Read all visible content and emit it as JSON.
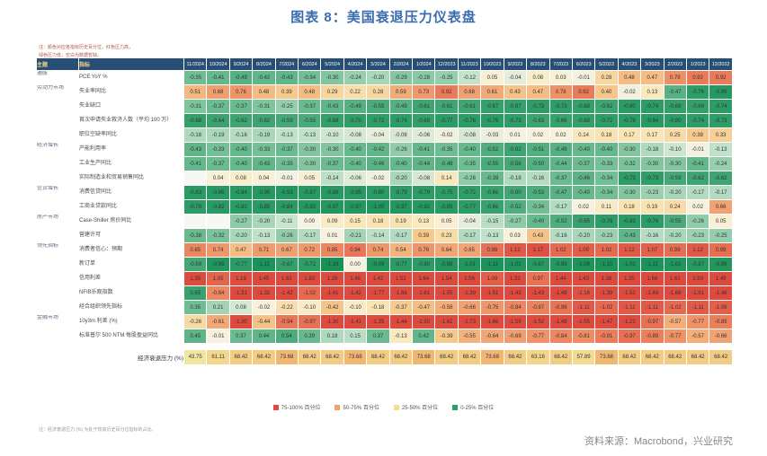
{
  "figure": {
    "title": "图表 8：美国衰退压力仪表盘",
    "source": "资料来源：Macrobond，兴业研究"
  },
  "notes": {
    "top_line1": "注：颜色对应各指标历史百分位，红色压力高，",
    "top_line2": "绿色压力低；空白为数据暂缺。",
    "bottom": "注：经济衰退压力 (%) 为处于较高历史百分位指标的占比。"
  },
  "chart_data": {
    "type": "heatmap",
    "title": "美国衰退压力仪表盘",
    "legend_position": "bottom-center",
    "corner_headers": {
      "theme": "主题",
      "indicator": "指标"
    },
    "columns": [
      "11/2024",
      "10/2024",
      "9/2024",
      "8/2024",
      "7/2024",
      "6/2024",
      "5/2024",
      "4/2024",
      "3/2024",
      "2/2024",
      "1/2024",
      "12/2023",
      "11/2023",
      "10/2023",
      "9/2023",
      "8/2023",
      "7/2023",
      "6/2023",
      "5/2023",
      "4/2023",
      "3/2023",
      "2/2023",
      "1/2023",
      "12/2022"
    ],
    "groups": [
      {
        "theme": "通胀",
        "rows": [
          {
            "label": "PCE YoY %",
            "direction": 1,
            "values": [
              -0.35,
              -0.41,
              -0.49,
              -0.42,
              -0.43,
              -0.34,
              -0.3,
              -0.24,
              -0.2,
              -0.29,
              -0.28,
              -0.25,
              -0.12,
              0.05,
              -0.04,
              0.08,
              0.03,
              -0.01,
              0.28,
              0.48,
              0.47,
              0.79,
              0.92,
              0.92
            ]
          }
        ]
      },
      {
        "theme": "劳动力市场",
        "rows": [
          {
            "label": "失业率同比",
            "direction": 1,
            "values": [
              0.51,
              0.68,
              0.76,
              0.48,
              0.39,
              0.48,
              0.29,
              0.22,
              0.28,
              0.59,
              0.73,
              0.92,
              0.68,
              0.61,
              0.43,
              0.47,
              0.78,
              0.92,
              0.4,
              -0.02,
              0.13,
              -0.47,
              -0.76,
              -0.89
            ]
          },
          {
            "label": "失业缺口",
            "direction": 1,
            "values": [
              -0.31,
              -0.37,
              -0.37,
              -0.31,
              -0.25,
              -0.37,
              -0.43,
              -0.49,
              -0.55,
              -0.49,
              -0.61,
              -0.61,
              -0.61,
              -0.67,
              -0.67,
              -0.73,
              -0.73,
              -0.68,
              -0.62,
              -0.8,
              -0.74,
              -0.68,
              -0.68,
              -0.74
            ]
          },
          {
            "label": "首次申请失业救济人数（平均 100 万）",
            "direction": 1,
            "values": [
              -0.68,
              -0.64,
              -0.62,
              -0.62,
              -0.59,
              -0.55,
              -0.68,
              -0.7,
              -0.72,
              -0.74,
              -0.68,
              -0.77,
              -0.76,
              -0.79,
              -0.73,
              -0.63,
              -0.66,
              -0.68,
              -0.72,
              -0.78,
              -0.84,
              -0.8,
              -0.74,
              -0.73
            ]
          },
          {
            "label": "职位空缺率同比",
            "direction": 1,
            "values": [
              -0.18,
              -0.19,
              -0.16,
              -0.19,
              -0.13,
              -0.13,
              -0.1,
              -0.08,
              -0.04,
              -0.08,
              -0.06,
              -0.02,
              -0.08,
              -0.03,
              0.01,
              0.02,
              0.02,
              0.14,
              0.18,
              0.17,
              0.17,
              0.25,
              0.38,
              0.33
            ]
          }
        ]
      },
      {
        "theme": "经济增长",
        "rows": [
          {
            "label": "产能利用率",
            "direction": 1,
            "values": [
              -0.43,
              -0.33,
              -0.4,
              -0.33,
              -0.37,
              -0.3,
              -0.3,
              -0.4,
              -0.42,
              -0.26,
              -0.41,
              -0.35,
              -0.4,
              -0.52,
              -0.62,
              -0.51,
              -0.49,
              -0.4,
              -0.4,
              -0.3,
              -0.18,
              -0.1,
              -0.01,
              -0.13
            ]
          },
          {
            "label": "工业生产同比",
            "direction": 1,
            "values": [
              -0.41,
              -0.37,
              -0.4,
              -0.43,
              -0.35,
              -0.3,
              -0.37,
              -0.4,
              -0.46,
              -0.4,
              -0.44,
              -0.48,
              -0.35,
              -0.55,
              -0.58,
              -0.5,
              -0.44,
              -0.37,
              -0.33,
              -0.32,
              -0.3,
              -0.3,
              -0.41,
              -0.24
            ]
          },
          {
            "label": "实际制造业和贸易销售同比",
            "direction": 1,
            "values": [
              null,
              0.04,
              0.08,
              0.04,
              -0.01,
              0.05,
              -0.14,
              -0.06,
              -0.02,
              -0.2,
              -0.08,
              0.14,
              -0.26,
              -0.39,
              -0.18,
              -0.16,
              -0.37,
              -0.46,
              -0.34,
              -0.73,
              -0.73,
              -0.59,
              -0.62,
              -0.62
            ]
          }
        ]
      },
      {
        "theme": "信贷增长",
        "rows": [
          {
            "label": "消费信贷同比",
            "direction": 1,
            "values": [
              -0.83,
              -0.86,
              -0.84,
              -0.9,
              -0.93,
              -0.87,
              -0.88,
              -0.85,
              -0.8,
              -0.79,
              -0.79,
              -0.75,
              -0.72,
              -0.66,
              -0.6,
              -0.53,
              -0.47,
              -0.4,
              -0.34,
              -0.3,
              -0.23,
              -0.2,
              -0.17,
              -0.17
            ]
          },
          {
            "label": "工商业贷款同比",
            "direction": 1,
            "values": [
              -0.78,
              -0.82,
              -0.82,
              -0.85,
              -0.84,
              -0.92,
              -0.97,
              -0.97,
              -1.0,
              -0.97,
              -0.92,
              -0.85,
              -0.77,
              -0.66,
              -0.52,
              -0.34,
              -0.17,
              0.02,
              0.11,
              0.18,
              0.19,
              0.24,
              0.02,
              0.66
            ]
          }
        ]
      },
      {
        "theme": "房产市场",
        "rows": [
          {
            "label": "Case-Shiller 房价同比",
            "direction": 1,
            "values": [
              null,
              null,
              -0.27,
              -0.2,
              -0.11,
              0.0,
              0.09,
              0.15,
              0.18,
              0.19,
              0.13,
              0.05,
              -0.04,
              -0.15,
              -0.27,
              -0.4,
              -0.52,
              -0.65,
              -0.76,
              -0.83,
              -0.76,
              -0.55,
              -0.26,
              0.05
            ]
          },
          {
            "label": "营建许可",
            "direction": 1,
            "values": [
              -0.38,
              -0.32,
              -0.2,
              -0.13,
              -0.26,
              -0.17,
              0.01,
              -0.21,
              -0.14,
              -0.17,
              0.39,
              0.23,
              -0.17,
              -0.13,
              0.03,
              0.43,
              -0.16,
              -0.2,
              -0.23,
              -0.43,
              -0.16,
              -0.2,
              -0.23,
              -0.25
            ]
          }
        ]
      },
      {
        "theme": "领先指标",
        "rows": [
          {
            "label": "消费者信心：预期",
            "direction": 1,
            "values": [
              0.85,
              0.74,
              0.47,
              0.71,
              0.67,
              0.72,
              0.85,
              0.94,
              0.74,
              0.54,
              0.76,
              0.64,
              0.65,
              0.98,
              1.12,
              1.17,
              1.02,
              1.09,
              1.02,
              1.12,
              1.07,
              0.99,
              1.12,
              0.99
            ]
          },
          {
            "label": "新订单",
            "direction": 1,
            "values": [
              -0.59,
              -0.98,
              -0.77,
              -1.11,
              -0.67,
              -0.72,
              -1.33,
              0.0,
              -0.99,
              -0.77,
              -0.8,
              -0.98,
              -1.01,
              -1.11,
              -1.02,
              -0.87,
              -0.93,
              -1.08,
              -1.1,
              -1.01,
              -1.11,
              -1.02,
              -0.87,
              -0.99
            ]
          },
          {
            "label": "信用利差",
            "direction": 1,
            "values": [
              1.35,
              1.05,
              1.19,
              1.45,
              1.62,
              1.83,
              1.28,
              1.48,
              1.42,
              1.52,
              1.64,
              1.54,
              1.56,
              1.09,
              1.33,
              0.97,
              1.44,
              1.43,
              1.38,
              1.2,
              1.68,
              1.61,
              1.59,
              1.49
            ]
          },
          {
            "label": "NFIB乐观指数",
            "direction": -1,
            "values": [
              0.65,
              -0.84,
              -1.31,
              -1.32,
              -1.42,
              -1.02,
              -1.41,
              -1.42,
              -1.77,
              -1.66,
              -1.61,
              -1.55,
              -1.39,
              -1.51,
              -1.43,
              -1.43,
              -1.48,
              -1.16,
              -1.39,
              -1.51,
              -1.48,
              -1.68,
              -1.61,
              -1.48
            ]
          },
          {
            "label": "经合组织领先指标",
            "direction": -1,
            "values": [
              0.35,
              0.21,
              0.08,
              -0.02,
              -0.22,
              -0.1,
              -0.42,
              -0.1,
              -0.18,
              -0.37,
              -0.47,
              -0.58,
              -0.66,
              -0.75,
              -0.84,
              -0.87,
              -0.96,
              -1.11,
              -1.02,
              -1.11,
              -1.11,
              -1.02,
              -1.11,
              -1.08
            ]
          }
        ]
      },
      {
        "theme": "金融市场",
        "rows": [
          {
            "label": "10y3m 利差 (%)",
            "direction": -1,
            "values": [
              -0.26,
              -0.61,
              -1.3,
              -0.44,
              -0.94,
              -0.97,
              -1.3,
              -1.41,
              -1.35,
              -1.44,
              -1.5,
              -1.62,
              -1.73,
              -1.66,
              -1.59,
              -1.52,
              -1.48,
              -1.55,
              -1.47,
              -1.21,
              -0.97,
              -0.57,
              -0.77,
              -0.89
            ]
          },
          {
            "label": "标准普尔 500 NTM 每股盈益同比",
            "direction": -1,
            "values": [
              0.45,
              -0.01,
              0.37,
              0.44,
              0.54,
              0.39,
              0.18,
              0.15,
              0.37,
              -0.13,
              0.42,
              -0.39,
              -0.55,
              -0.64,
              -0.69,
              -0.77,
              -0.84,
              -0.81,
              -0.91,
              -0.97,
              -0.89,
              -0.77,
              -0.57,
              -0.66
            ]
          }
        ]
      }
    ],
    "pressure_row": {
      "label": "经济衰退压力 (%)",
      "values": [
        43.75,
        61.11,
        68.42,
        68.42,
        73.68,
        68.42,
        68.42,
        73.68,
        68.42,
        68.42,
        73.68,
        68.42,
        68.42,
        73.68,
        68.42,
        63.16,
        68.42,
        57.89,
        73.68,
        68.42,
        68.42,
        68.42,
        68.42,
        68.42
      ]
    },
    "legend": [
      {
        "label": "75-100% 百分位",
        "color": "#df4a3f"
      },
      {
        "label": "50-75% 百分位",
        "color": "#f0a36b"
      },
      {
        "label": "25-50% 百分位",
        "color": "#f6dd8f"
      },
      {
        "label": "0-25% 百分位",
        "color": "#2f9e68"
      }
    ],
    "colors": {
      "title": "#3a6cae",
      "header_bg": "#274e74",
      "header_date_text": "#ffffff",
      "header_label_text": "#f2d388",
      "high_extreme": "#df4a3f",
      "low_extreme": "#169257",
      "missing_cell": "#f7f7f5"
    }
  }
}
